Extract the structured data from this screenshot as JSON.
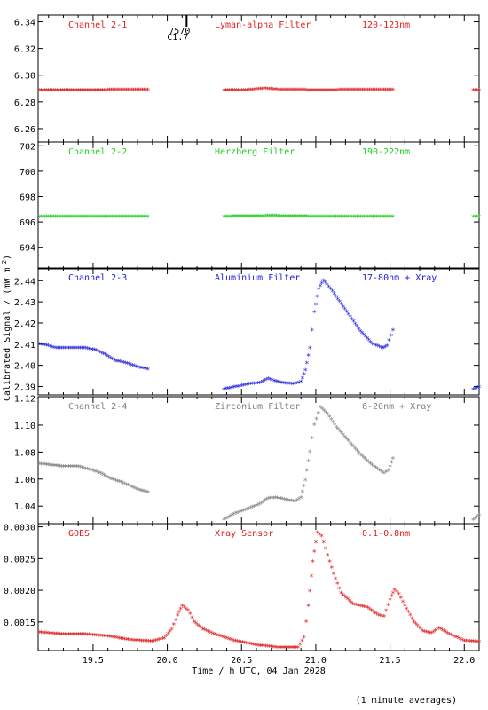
{
  "chart_data": {
    "type": "scatter",
    "x_axis": {
      "label": "Time / h UTC, 04 Jan 2028",
      "range": [
        19.13,
        22.1
      ],
      "ticks": [
        19.5,
        20.0,
        20.5,
        21.0,
        21.5,
        22.0
      ],
      "tick_labels": [
        "19.5",
        "20.0",
        "20.5",
        "21.0",
        "21.5",
        "22.0"
      ]
    },
    "y_axis_label": "Calibrated Signal / (mW m",
    "y_axis_label_sup": "-2",
    "y_axis_label_end": ")",
    "footnote": "(1 minute averages)",
    "annotation": {
      "line1": "7570",
      "line2": "C1.7",
      "x": 20.13
    },
    "panels": [
      {
        "channel": "Channel 2-1",
        "filter": "Lyman-alpha Filter",
        "band": "120-123nm",
        "color": "#e02020",
        "ylim": [
          6.25,
          6.345
        ],
        "yticks": [
          6.26,
          6.28,
          6.3,
          6.32,
          6.34
        ],
        "ytick_labels": [
          "6.26",
          "6.28",
          "6.30",
          "6.32",
          "6.34"
        ],
        "series": [
          [
            [
              19.14,
              6.2885
            ],
            [
              19.4,
              6.2885
            ],
            [
              19.6,
              6.2887
            ],
            [
              19.87,
              6.2889
            ]
          ],
          [
            [
              20.38,
              6.2885
            ],
            [
              20.55,
              6.2887
            ],
            [
              20.65,
              6.2898
            ],
            [
              20.75,
              6.289
            ],
            [
              21.0,
              6.2886
            ],
            [
              21.3,
              6.2888
            ],
            [
              21.52,
              6.289
            ]
          ],
          [
            [
              22.06,
              6.2884
            ],
            [
              22.1,
              6.2884
            ]
          ]
        ]
      },
      {
        "channel": "Channel 2-2",
        "filter": "Herzberg Filter",
        "band": "190-222nm",
        "color": "#20d020",
        "ylim": [
          692.3,
          702.3
        ],
        "yticks": [
          694,
          696,
          698,
          700,
          702
        ],
        "ytick_labels": [
          "694",
          "696",
          "698",
          "700",
          "702"
        ],
        "series": [
          [
            [
              19.14,
              696.4
            ],
            [
              19.5,
              696.4
            ],
            [
              19.87,
              696.4
            ]
          ],
          [
            [
              20.38,
              696.4
            ],
            [
              20.7,
              696.45
            ],
            [
              21.0,
              696.4
            ],
            [
              21.52,
              696.4
            ]
          ],
          [
            [
              22.06,
              696.4
            ],
            [
              22.1,
              696.4
            ]
          ]
        ]
      },
      {
        "channel": "Channel 2-3",
        "filter": "Aluminium Filter",
        "band": "17-80nm + Xray",
        "color": "#2020e0",
        "ylim": [
          2.386,
          2.446
        ],
        "yticks": [
          2.39,
          2.4,
          2.41,
          2.42,
          2.43,
          2.44
        ],
        "ytick_labels": [
          "2.39",
          "2.40",
          "2.41",
          "2.42",
          "2.43",
          "2.44"
        ],
        "series": [
          [
            [
              19.14,
              2.41
            ],
            [
              19.2,
              2.409
            ],
            [
              19.25,
              2.408
            ],
            [
              19.35,
              2.408
            ],
            [
              19.45,
              2.408
            ],
            [
              19.52,
              2.407
            ],
            [
              19.58,
              2.405
            ],
            [
              19.65,
              2.402
            ],
            [
              19.72,
              2.401
            ],
            [
              19.8,
              2.399
            ],
            [
              19.87,
              2.398
            ]
          ],
          [
            [
              20.38,
              2.3885
            ],
            [
              20.45,
              2.3895
            ],
            [
              20.55,
              2.391
            ],
            [
              20.62,
              2.3915
            ],
            [
              20.68,
              2.3935
            ],
            [
              20.72,
              2.3925
            ],
            [
              20.78,
              2.3915
            ],
            [
              20.85,
              2.391
            ],
            [
              20.9,
              2.392
            ],
            [
              20.93,
              2.3975
            ],
            [
              20.96,
              2.408
            ],
            [
              20.99,
              2.425
            ],
            [
              21.02,
              2.436
            ],
            [
              21.05,
              2.44
            ],
            [
              21.1,
              2.436
            ],
            [
              21.16,
              2.43
            ],
            [
              21.22,
              2.424
            ],
            [
              21.3,
              2.416
            ],
            [
              21.38,
              2.41
            ],
            [
              21.45,
              2.408
            ],
            [
              21.48,
              2.409
            ],
            [
              21.52,
              2.4165
            ]
          ],
          [
            [
              22.06,
              2.3885
            ],
            [
              22.1,
              2.3895
            ]
          ]
        ]
      },
      {
        "channel": "Channel 2-4",
        "filter": "Zirconium Filter",
        "band": "6-20nm + Xray",
        "color": "#808080",
        "ylim": [
          1.027,
          1.121
        ],
        "yticks": [
          1.04,
          1.06,
          1.08,
          1.1,
          1.12
        ],
        "ytick_labels": [
          "1.04",
          "1.06",
          "1.08",
          "1.10",
          "1.12"
        ],
        "series": [
          [
            [
              19.14,
              1.071
            ],
            [
              19.22,
              1.07
            ],
            [
              19.3,
              1.069
            ],
            [
              19.4,
              1.069
            ],
            [
              19.5,
              1.066
            ],
            [
              19.55,
              1.064
            ],
            [
              19.62,
              1.06
            ],
            [
              19.7,
              1.057
            ],
            [
              19.8,
              1.052
            ],
            [
              19.87,
              1.05
            ]
          ],
          [
            [
              20.38,
              1.0295
            ],
            [
              20.45,
              1.034
            ],
            [
              20.55,
              1.038
            ],
            [
              20.62,
              1.041
            ],
            [
              20.68,
              1.0455
            ],
            [
              20.73,
              1.046
            ],
            [
              20.8,
              1.0445
            ],
            [
              20.86,
              1.043
            ],
            [
              20.9,
              1.046
            ],
            [
              20.93,
              1.059
            ],
            [
              20.96,
              1.08
            ],
            [
              20.99,
              1.1
            ],
            [
              21.03,
              1.113
            ],
            [
              21.08,
              1.108
            ],
            [
              21.14,
              1.098
            ],
            [
              21.22,
              1.088
            ],
            [
              21.3,
              1.078
            ],
            [
              21.38,
              1.07
            ],
            [
              21.46,
              1.064
            ],
            [
              21.49,
              1.066
            ],
            [
              21.52,
              1.075
            ]
          ],
          [
            [
              22.06,
              1.0295
            ],
            [
              22.1,
              1.033
            ]
          ]
        ]
      },
      {
        "channel": "GOES",
        "filter": "Xray Sensor",
        "band": "0.1-0.8nm",
        "color": "#e02020",
        "ylim": [
          0.00105,
          0.00305
        ],
        "yticks": [
          0.0015,
          0.002,
          0.0025,
          0.003
        ],
        "ytick_labels": [
          "0.0015",
          "0.0020",
          "0.0025",
          "0.0030"
        ],
        "series": [
          [
            [
              19.14,
              0.00133
            ],
            [
              19.3,
              0.0013
            ],
            [
              19.45,
              0.0013
            ],
            [
              19.6,
              0.00127
            ],
            [
              19.75,
              0.00121
            ],
            [
              19.9,
              0.00119
            ],
            [
              19.98,
              0.00124
            ],
            [
              20.03,
              0.00138
            ],
            [
              20.07,
              0.0016
            ],
            [
              20.1,
              0.00175
            ],
            [
              20.14,
              0.00168
            ],
            [
              20.18,
              0.0015
            ],
            [
              20.24,
              0.00138
            ],
            [
              20.32,
              0.0013
            ],
            [
              20.45,
              0.0012
            ],
            [
              20.6,
              0.00113
            ],
            [
              20.75,
              0.00109
            ],
            [
              20.88,
              0.00109
            ],
            [
              20.92,
              0.00125
            ],
            [
              20.95,
              0.00175
            ],
            [
              20.98,
              0.00245
            ],
            [
              21.01,
              0.0029
            ],
            [
              21.04,
              0.00285
            ],
            [
              21.08,
              0.00255
            ],
            [
              21.12,
              0.00225
            ],
            [
              21.17,
              0.00195
            ],
            [
              21.25,
              0.00178
            ],
            [
              21.35,
              0.00172
            ],
            [
              21.42,
              0.0016
            ],
            [
              21.46,
              0.00158
            ],
            [
              21.5,
              0.00185
            ],
            [
              21.53,
              0.002
            ],
            [
              21.56,
              0.00194
            ],
            [
              21.6,
              0.00175
            ],
            [
              21.66,
              0.0015
            ],
            [
              21.72,
              0.00135
            ],
            [
              21.78,
              0.00132
            ],
            [
              21.83,
              0.0014
            ],
            [
              21.9,
              0.0013
            ],
            [
              22.0,
              0.0012
            ],
            [
              22.1,
              0.00118
            ]
          ]
        ]
      }
    ]
  }
}
